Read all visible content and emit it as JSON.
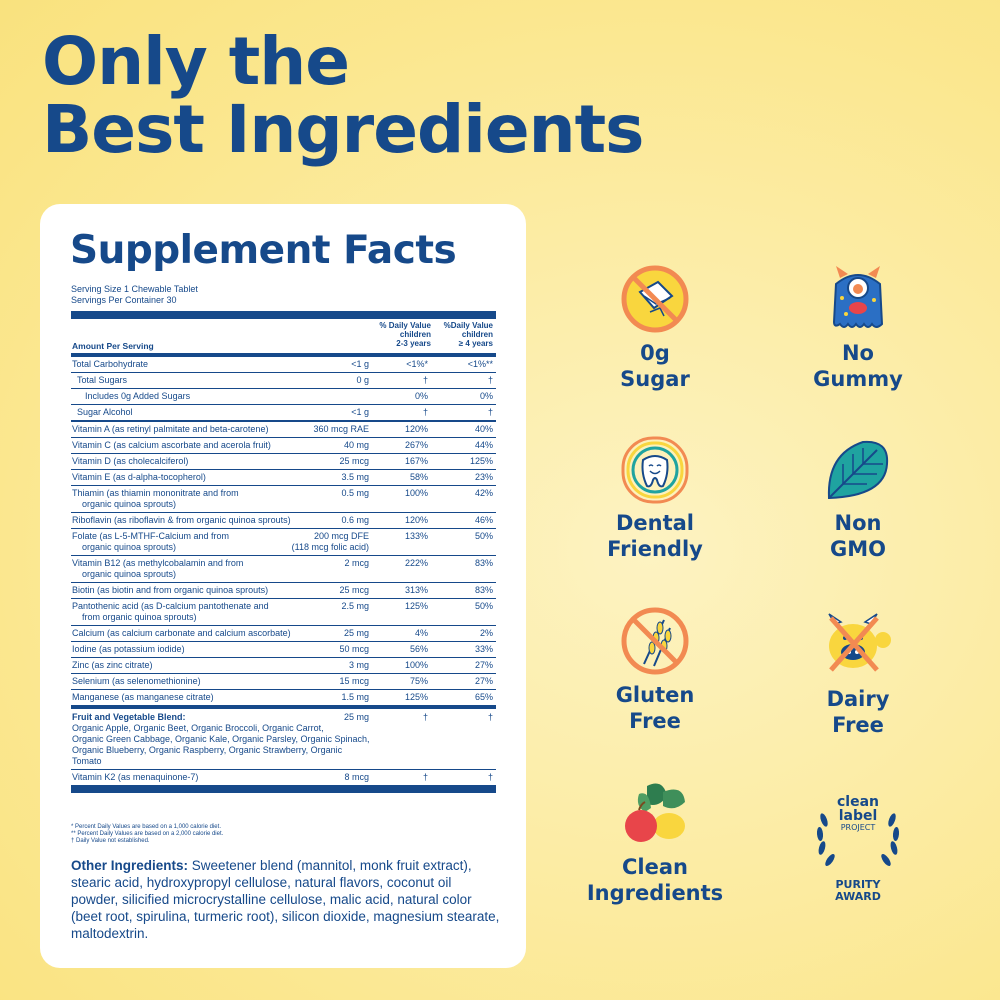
{
  "headline": {
    "line1": "Only the",
    "line2": "Best Ingredients"
  },
  "facts": {
    "title": "Supplement Facts",
    "serving_size": "Serving Size 1 Chewable Tablet",
    "servings_per_container": "Servings Per Container 30",
    "header": {
      "amount": "Amount Per Serving",
      "col1": [
        "% Daily Value",
        "children",
        "2-3 years"
      ],
      "col2": [
        "%Daily Value",
        "children",
        "≥ 4 years"
      ]
    },
    "rows": [
      {
        "name": "Total Carbohydrate",
        "amount": "<1 g",
        "d1": "<1%*",
        "d2": "<1%**"
      },
      {
        "name": "Total Sugars",
        "amount": "0 g",
        "d1": "†",
        "d2": "†"
      },
      {
        "name": "Includes 0g Added Sugars",
        "amount": "",
        "d1": "0%",
        "d2": "0%"
      },
      {
        "name": "Sugar Alcohol",
        "amount": "<1 g",
        "d1": "†",
        "d2": "†"
      },
      {
        "name": "Vitamin A (as retinyl palmitate and beta-carotene)",
        "amount": "360 mcg RAE",
        "d1": "120%",
        "d2": "40%"
      },
      {
        "name": "Vitamin C (as calcium ascorbate and acerola fruit)",
        "amount": "40 mg",
        "d1": "267%",
        "d2": "44%"
      },
      {
        "name": "Vitamin D (as cholecalciferol)",
        "amount": "25 mcg",
        "d1": "167%",
        "d2": "125%"
      },
      {
        "name": "Vitamin E (as d-alpha-tocopherol)",
        "amount": "3.5 mg",
        "d1": "58%",
        "d2": "23%"
      },
      {
        "name": "Thiamin (as thiamin mononitrate and from",
        "name2": "organic quinoa sprouts)",
        "amount": "0.5 mg",
        "d1": "100%",
        "d2": "42%"
      },
      {
        "name": "Riboflavin (as riboflavin & from organic quinoa sprouts)",
        "amount": "0.6 mg",
        "d1": "120%",
        "d2": "46%"
      },
      {
        "name": "Folate (as L-5-MTHF-Calcium and from",
        "name2": "organic quinoa sprouts)",
        "amount": "200 mcg DFE",
        "amount2": "(118 mcg folic acid)",
        "d1": "133%",
        "d2": "50%"
      },
      {
        "name": "Vitamin B12 (as methylcobalamin and from",
        "name2": "organic quinoa sprouts)",
        "amount": "2 mcg",
        "d1": "222%",
        "d2": "83%"
      },
      {
        "name": "Biotin (as biotin and from organic quinoa sprouts)",
        "amount": "25 mcg",
        "d1": "313%",
        "d2": "83%"
      },
      {
        "name": "Pantothenic acid (as D-calcium pantothenate and",
        "name2": "from organic quinoa sprouts)",
        "amount": "2.5 mg",
        "d1": "125%",
        "d2": "50%"
      },
      {
        "name": "Calcium (as calcium carbonate and calcium ascorbate)",
        "amount": "25 mg",
        "d1": "4%",
        "d2": "2%"
      },
      {
        "name": "Iodine (as potassium iodide)",
        "amount": "50 mcg",
        "d1": "56%",
        "d2": "33%"
      },
      {
        "name": "Zinc (as zinc citrate)",
        "amount": "3 mg",
        "d1": "100%",
        "d2": "27%"
      },
      {
        "name": "Selenium (as selenomethionine)",
        "amount": "15 mcg",
        "d1": "75%",
        "d2": "27%"
      },
      {
        "name": "Manganese (as manganese citrate)",
        "amount": "1.5 mg",
        "d1": "125%",
        "d2": "65%"
      }
    ],
    "blend": {
      "name": "Fruit and Vegetable Blend:",
      "desc1": "Organic Apple, Organic Beet, Organic Broccoli, Organic Carrot,",
      "desc2": "Organic Green Cabbage, Organic Kale, Organic Parsley, Organic Spinach,",
      "desc3": "Organic Blueberry, Organic Raspberry, Organic Strawberry, Organic Tomato",
      "amount": "25 mg",
      "d1": "†",
      "d2": "†"
    },
    "k2": {
      "name": "Vitamin K2 (as menaquinone-7)",
      "amount": "8 mcg",
      "d1": "†",
      "d2": "†"
    },
    "footnotes": [
      "* Percent Daily Values are based on a 1,000 calorie diet.",
      "** Percent Daily Values are based on a 2,000 calorie diet.",
      "† Daily Value not established."
    ],
    "other_label": "Other Ingredients:",
    "other_text": " Sweetener blend (mannitol, monk fruit extract), stearic acid, hydroxypropyl cellulose, natural flavors, coconut oil powder, silicified microcrystalline cellulose, malic acid, natural color (beet root, spirulina, turmeric root), silicon dioxide, magnesium stearate, maltodextrin."
  },
  "badges": [
    {
      "icon": "no-sugar-icon",
      "line1": "0g",
      "line2": "Sugar"
    },
    {
      "icon": "no-gummy-monster-icon",
      "line1": "No",
      "line2": "Gummy"
    },
    {
      "icon": "happy-tooth-icon",
      "line1": "Dental",
      "line2": "Friendly"
    },
    {
      "icon": "leaf-icon",
      "line1": "Non",
      "line2": "GMO"
    },
    {
      "icon": "no-wheat-icon",
      "line1": "Gluten",
      "line2": "Free"
    },
    {
      "icon": "no-cow-icon",
      "line1": "Dairy",
      "line2": "Free"
    },
    {
      "icon": "fruit-vegetable-icon",
      "line1": "Clean",
      "line2": "Ingredients"
    },
    {
      "icon": "clean-label-project-seal",
      "seal1": "clean",
      "seal2": "label",
      "seal3": "PROJECT",
      "seal4": "PURITY",
      "seal5": "AWARD"
    }
  ],
  "colors": {
    "navy": "#16498a",
    "yellow": "#f9d63e",
    "orange": "#f28a52",
    "teal": "#1fa3a0"
  }
}
